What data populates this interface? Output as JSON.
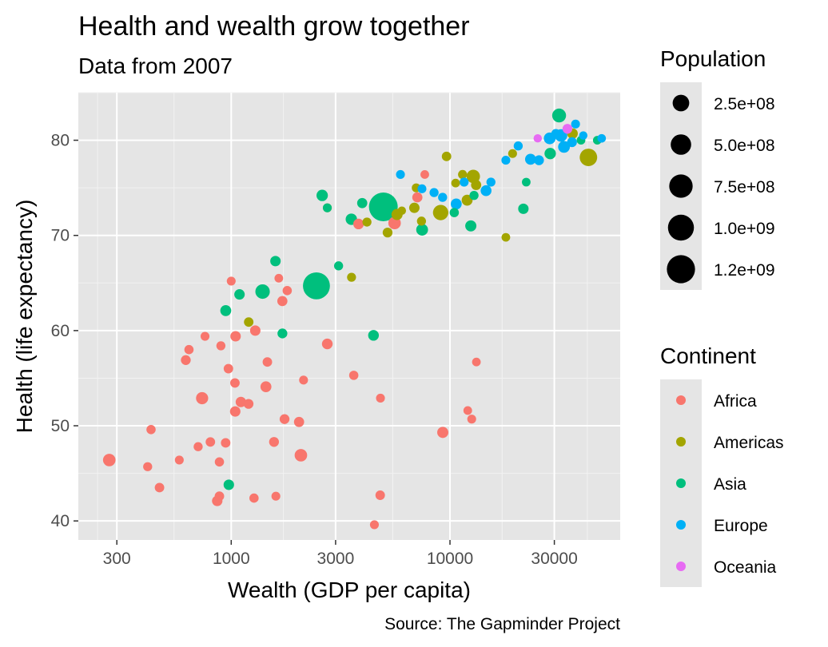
{
  "chart_data": {
    "type": "scatter",
    "title": "Health and wealth grow together",
    "subtitle": "Data from 2007",
    "xlabel": "Wealth (GDP per capita)",
    "ylabel": "Health (life expectancy)",
    "caption": "Source: The Gapminder Project",
    "x_scale": "log10",
    "xlim": [
      200,
      60000
    ],
    "ylim": [
      38,
      85
    ],
    "x_ticks": [
      300,
      1000,
      3000,
      10000,
      30000
    ],
    "x_tick_labels": [
      "300",
      "1000",
      "3000",
      "10000",
      "30000"
    ],
    "y_ticks": [
      40,
      50,
      60,
      70,
      80
    ],
    "y_tick_labels": [
      "40",
      "50",
      "60",
      "70",
      "80"
    ],
    "grid": true,
    "panel_background": "#e5e5e5",
    "size_legend": {
      "title": "Population",
      "position": "right",
      "entries": [
        {
          "label": "2.5e+08",
          "value": 250000000
        },
        {
          "label": "5.0e+08",
          "value": 500000000
        },
        {
          "label": "7.5e+08",
          "value": 750000000
        },
        {
          "label": "1.0e+09",
          "value": 1000000000
        },
        {
          "label": "1.2e+09",
          "value": 1250000000
        }
      ]
    },
    "color_legend": {
      "title": "Continent",
      "position": "right",
      "entries": [
        {
          "label": "Africa",
          "color": "#F8766D"
        },
        {
          "label": "Americas",
          "color": "#A3A500"
        },
        {
          "label": "Asia",
          "color": "#00BF7D"
        },
        {
          "label": "Europe",
          "color": "#00B0F6"
        },
        {
          "label": "Oceania",
          "color": "#E76BF3"
        }
      ]
    },
    "series": [
      {
        "name": "Africa",
        "color": "#F8766D",
        "points": [
          [
            277,
            46.4,
            80000000
          ],
          [
            415,
            45.7,
            10000000
          ],
          [
            430,
            49.6,
            12000000
          ],
          [
            470,
            43.5,
            15000000
          ],
          [
            579,
            46.4,
            8000000
          ],
          [
            620,
            56.9,
            20000000
          ],
          [
            641,
            58.0,
            12000000
          ],
          [
            706,
            47.8,
            10000000
          ],
          [
            736,
            52.9,
            70000000
          ],
          [
            759,
            59.4,
            8000000
          ],
          [
            803,
            48.3,
            15000000
          ],
          [
            863,
            42.1,
            30000000
          ],
          [
            883,
            42.6,
            15000000
          ],
          [
            883,
            46.2,
            12000000
          ],
          [
            897,
            58.4,
            10000000
          ],
          [
            943,
            48.2,
            15000000
          ],
          [
            971,
            56.0,
            15000000
          ],
          [
            1000,
            65.2,
            8000000
          ],
          [
            1040,
            54.5,
            15000000
          ],
          [
            1043,
            51.5,
            30000000
          ],
          [
            1047,
            59.4,
            30000000
          ],
          [
            1107,
            52.5,
            30000000
          ],
          [
            1200,
            52.3,
            20000000
          ],
          [
            1271,
            42.4,
            12000000
          ],
          [
            1288,
            60.0,
            30000000
          ],
          [
            1441,
            54.1,
            40000000
          ],
          [
            1463,
            56.7,
            15000000
          ],
          [
            1569,
            48.3,
            20000000
          ],
          [
            1600,
            42.6,
            8000000
          ],
          [
            1650,
            65.5,
            6000000
          ],
          [
            1713,
            63.1,
            25000000
          ],
          [
            1753,
            50.7,
            20000000
          ],
          [
            1803,
            64.2,
            12000000
          ],
          [
            2042,
            50.4,
            25000000
          ],
          [
            2082,
            46.9,
            80000000
          ],
          [
            2141,
            54.8,
            8000000
          ],
          [
            2749,
            58.6,
            35000000
          ],
          [
            3632,
            55.3,
            12000000
          ],
          [
            3820,
            71.2,
            33000000
          ],
          [
            4513,
            39.6,
            8000000
          ],
          [
            4797,
            42.7,
            15000000
          ],
          [
            4811,
            52.9,
            8000000
          ],
          [
            5581,
            71.3,
            80000000
          ],
          [
            7093,
            74.0,
            25000000
          ],
          [
            7670,
            76.4,
            6000000
          ],
          [
            9270,
            49.3,
            44000000
          ],
          [
            12057,
            51.6,
            6000000
          ],
          [
            12570,
            50.7,
            8000000
          ],
          [
            13206,
            56.7,
            6000000
          ]
        ]
      },
      {
        "name": "Americas",
        "color": "#A3A500",
        "points": [
          [
            1202,
            60.9,
            15000000
          ],
          [
            2750,
            72.9,
            8000000
          ],
          [
            3548,
            65.6,
            9000000
          ],
          [
            4173,
            71.4,
            10000000
          ],
          [
            5186,
            70.3,
            20000000
          ],
          [
            5728,
            72.2,
            45000000
          ],
          [
            6025,
            72.6,
            4000000
          ],
          [
            6873,
            72.9,
            29000000
          ],
          [
            7008,
            75.0,
            8000000
          ],
          [
            7408,
            71.5,
            10000000
          ],
          [
            9065,
            72.4,
            190000000
          ],
          [
            9645,
            78.3,
            15000000
          ],
          [
            10611,
            75.5,
            6000000
          ],
          [
            11416,
            76.4,
            10000000
          ],
          [
            11978,
            73.7,
            40000000
          ],
          [
            12779,
            76.2,
            110000000
          ],
          [
            13172,
            75.3,
            25000000
          ],
          [
            18009,
            69.8,
            6000000
          ],
          [
            19329,
            78.6,
            8000000
          ],
          [
            36319,
            80.7,
            33000000
          ],
          [
            42952,
            78.2,
            301000000
          ]
        ]
      },
      {
        "name": "Asia",
        "color": "#00BF7D",
        "points": [
          [
            944,
            62.1,
            40000000
          ],
          [
            975,
            43.8,
            31000000
          ],
          [
            1091,
            63.8,
            30000000
          ],
          [
            1391,
            64.1,
            150000000
          ],
          [
            1593,
            67.3,
            30000000
          ],
          [
            1714,
            59.7,
            20000000
          ],
          [
            2452,
            64.7,
            1110000000
          ],
          [
            2605,
            74.2,
            50000000
          ],
          [
            2749,
            72.9,
            8000000
          ],
          [
            3096,
            66.8,
            10000000
          ],
          [
            3541,
            71.7,
            50000000
          ],
          [
            4471,
            59.5,
            35000000
          ],
          [
            3970,
            73.4,
            25000000
          ],
          [
            4959,
            73.0,
            1320000000
          ],
          [
            7458,
            70.6,
            60000000
          ],
          [
            10461,
            72.4,
            12000000
          ],
          [
            12452,
            71.0,
            45000000
          ],
          [
            12880,
            74.2,
            10000000
          ],
          [
            21655,
            72.8,
            30000000
          ],
          [
            22316,
            75.6,
            6000000
          ],
          [
            28718,
            78.6,
            50000000
          ],
          [
            31540,
            82.6,
            127000000
          ],
          [
            39725,
            80.0,
            6000000
          ],
          [
            47143,
            80.0,
            6000000
          ]
        ]
      },
      {
        "name": "Europe",
        "color": "#00B0F6",
        "points": [
          [
            5937,
            76.4,
            8000000
          ],
          [
            7446,
            74.9,
            8000000
          ],
          [
            8458,
            74.5,
            10000000
          ],
          [
            9253,
            74.0,
            10000000
          ],
          [
            10681,
            73.3,
            40000000
          ],
          [
            11605,
            75.6,
            10000000
          ],
          [
            14619,
            74.7,
            38000000
          ],
          [
            15390,
            75.6,
            10000000
          ],
          [
            18008,
            77.9,
            8000000
          ],
          [
            20510,
            79.4,
            10000000
          ],
          [
            23348,
            78.0,
            40000000
          ],
          [
            25523,
            77.9,
            20000000
          ],
          [
            28570,
            80.2,
            60000000
          ],
          [
            32170,
            80.5,
            82000000
          ],
          [
            30470,
            80.7,
            10000000
          ],
          [
            33207,
            79.3,
            60000000
          ],
          [
            36126,
            79.8,
            20000000
          ],
          [
            37507,
            81.7,
            8000000
          ],
          [
            40676,
            80.5,
            4000000
          ],
          [
            49357,
            80.2,
            5000000
          ]
        ]
      },
      {
        "name": "Oceania",
        "color": "#E76BF3",
        "points": [
          [
            25185,
            80.2,
            4000000
          ],
          [
            34435,
            81.2,
            20000000
          ]
        ]
      }
    ]
  }
}
